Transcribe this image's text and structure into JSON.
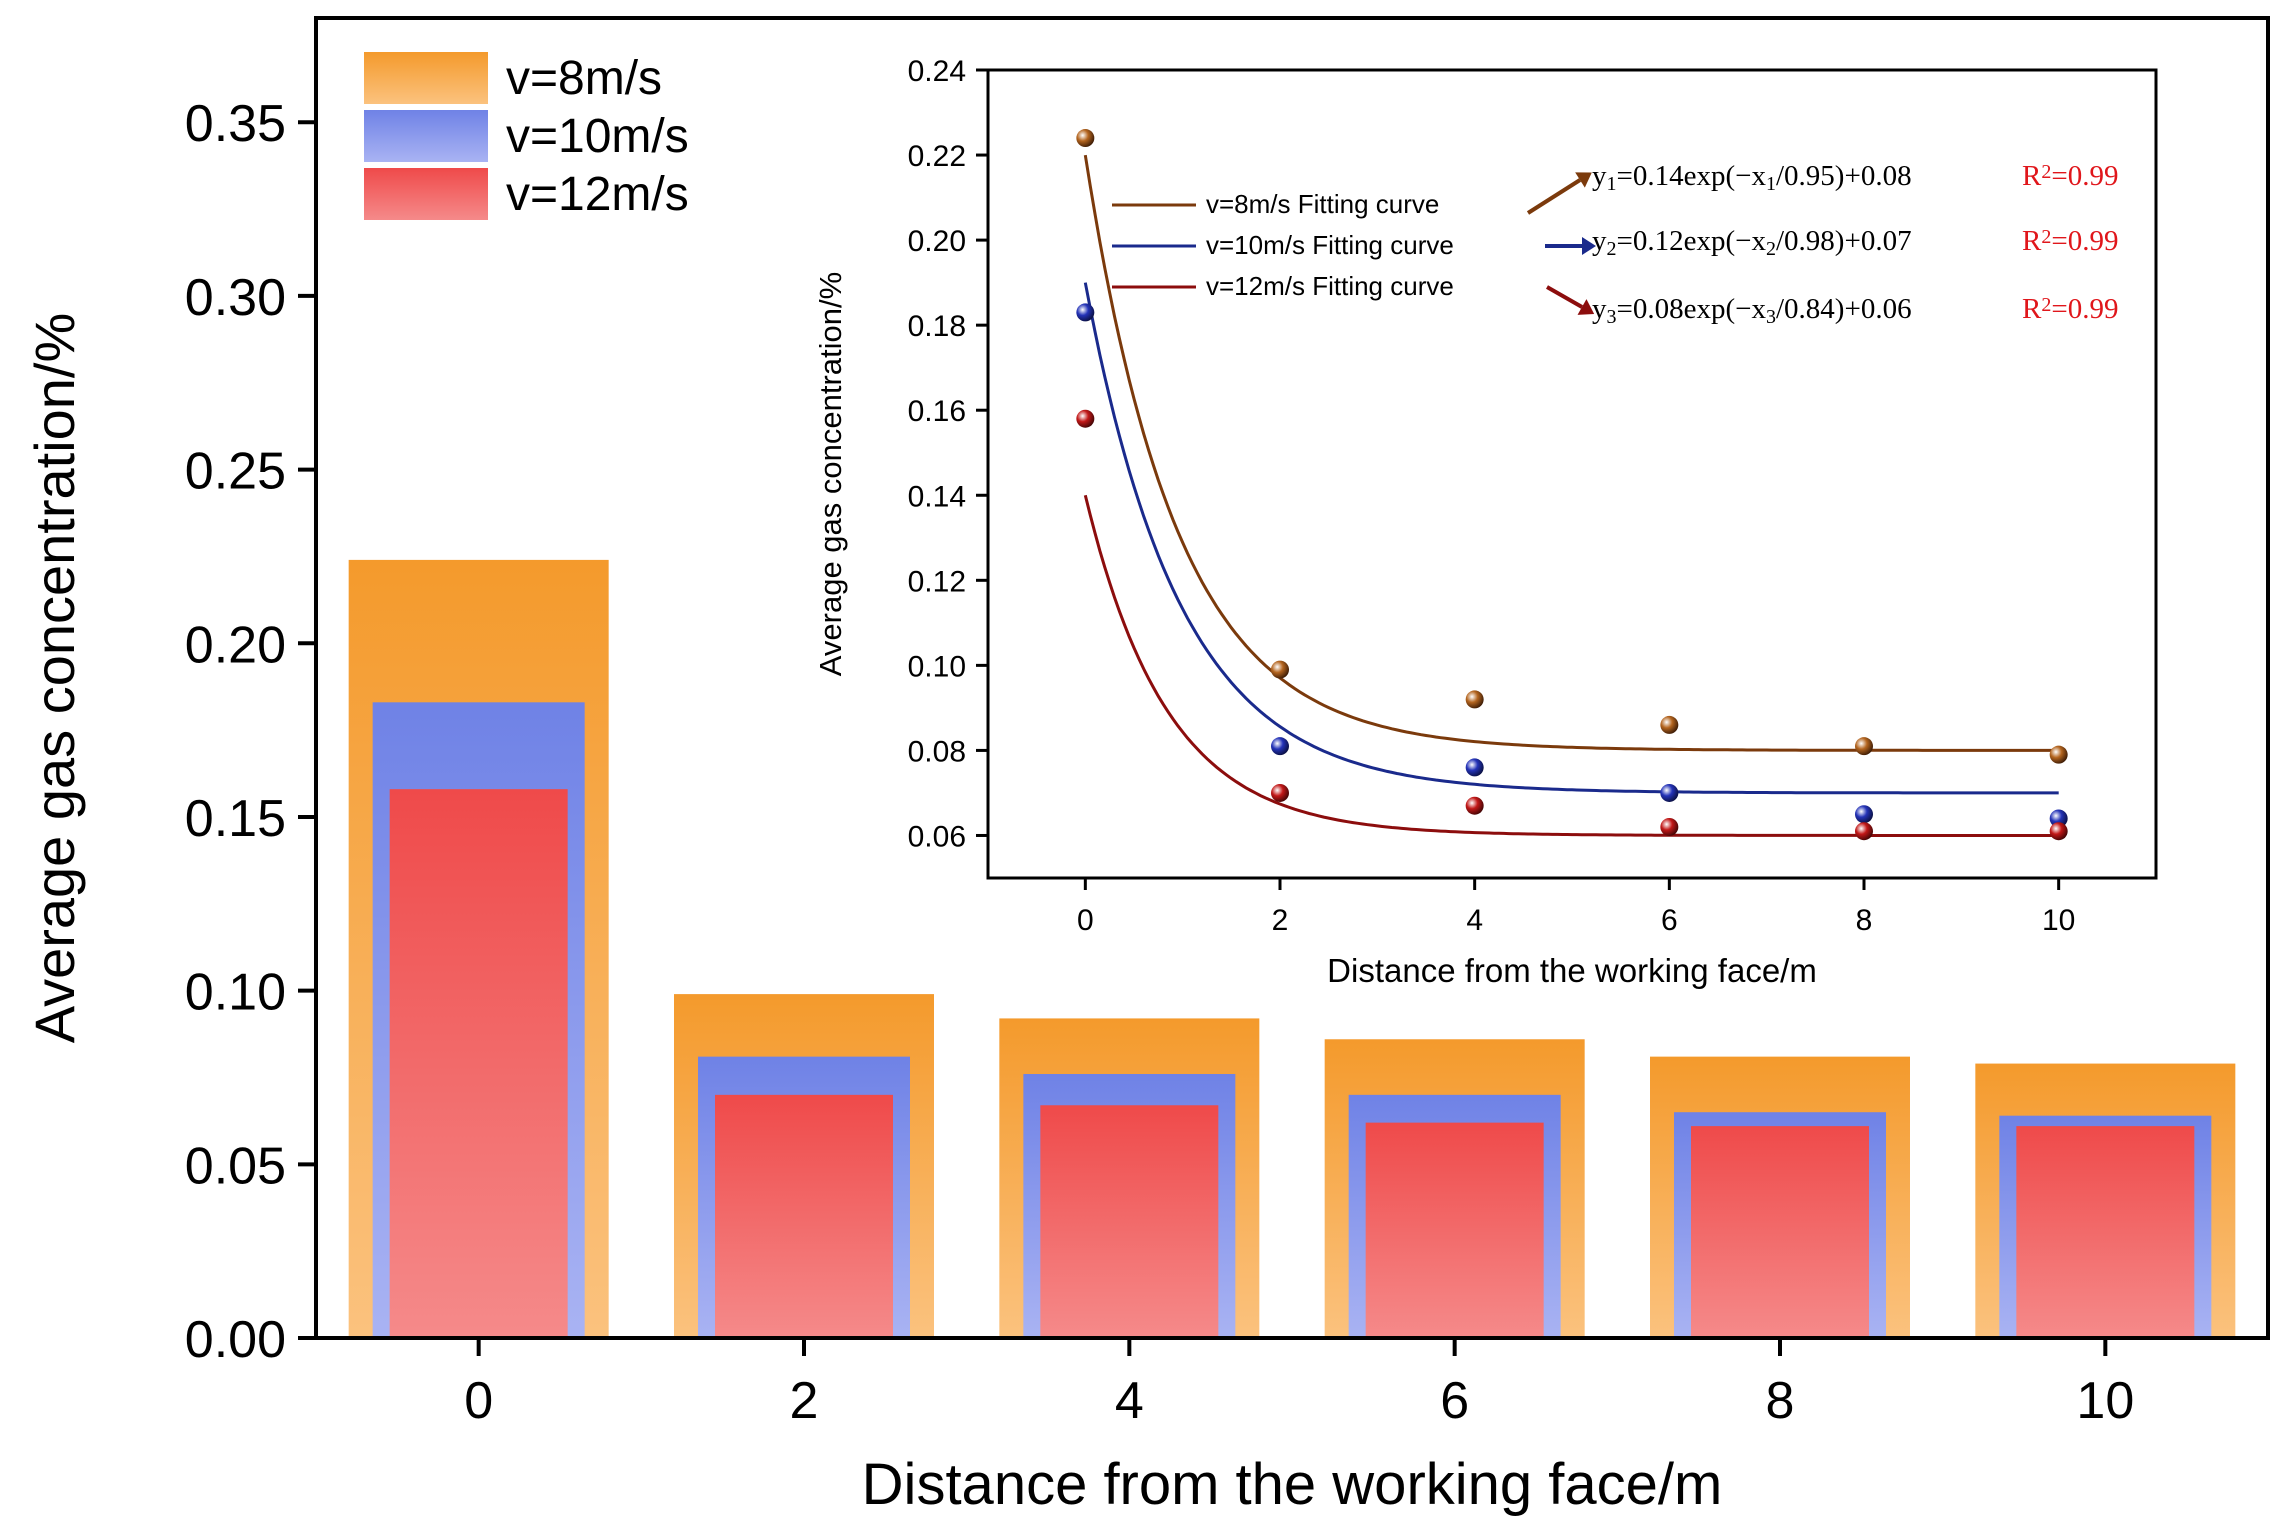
{
  "colors": {
    "orange_top": "#f49a2c",
    "orange_bottom": "#fbc27e",
    "blue_top": "#6f82e6",
    "blue_bottom": "#a9b3f3",
    "red_top": "#ef4a4a",
    "red_bottom": "#f58a8a",
    "fit_8": "#7b3a0c",
    "fit_10": "#1a2a8c",
    "fit_12": "#8c0d0d",
    "pt_8": "#b4651f",
    "pt_10": "#2433b8",
    "pt_12": "#c21818",
    "r2_text": "#e0161b"
  },
  "chart_data": [
    {
      "type": "bar",
      "title": "",
      "xlabel": "Distance from the working face/m",
      "ylabel": "Average gas concentration/%",
      "categories": [
        "0",
        "2",
        "4",
        "6",
        "8",
        "10"
      ],
      "ylim": [
        0,
        0.38
      ],
      "yticks": [
        "0.00",
        "0.05",
        "0.10",
        "0.15",
        "0.20",
        "0.25",
        "0.30",
        "0.35"
      ],
      "legend_position": "top-left",
      "series": [
        {
          "name": "v=8m/s",
          "values": [
            0.224,
            0.099,
            0.092,
            0.086,
            0.081,
            0.079
          ]
        },
        {
          "name": "v=10m/s",
          "values": [
            0.183,
            0.081,
            0.076,
            0.07,
            0.065,
            0.064
          ]
        },
        {
          "name": "v=12m/s",
          "values": [
            0.158,
            0.07,
            0.067,
            0.062,
            0.061,
            0.061
          ]
        }
      ]
    },
    {
      "type": "scatter",
      "title": "",
      "xlabel": "Distance from the working face/m",
      "ylabel": "Average gas concentration/%",
      "x": [
        0,
        2,
        4,
        6,
        8,
        10
      ],
      "xticks": [
        "0",
        "2",
        "4",
        "6",
        "8",
        "10"
      ],
      "xlim": [
        -1,
        11
      ],
      "ylim": [
        0.05,
        0.24
      ],
      "yticks": [
        "0.06",
        "0.08",
        "0.10",
        "0.12",
        "0.14",
        "0.16",
        "0.18",
        "0.20",
        "0.22",
        "0.24"
      ],
      "series": [
        {
          "name": "v=8m/s",
          "values": [
            0.224,
            0.099,
            0.092,
            0.086,
            0.081,
            0.079
          ]
        },
        {
          "name": "v=10m/s",
          "values": [
            0.183,
            0.081,
            0.076,
            0.07,
            0.065,
            0.064
          ]
        },
        {
          "name": "v=12m/s",
          "values": [
            0.158,
            0.07,
            0.067,
            0.062,
            0.061,
            0.061
          ]
        }
      ],
      "fits": [
        {
          "label": "v=8m/s Fitting curve",
          "a": 0.14,
          "t": 0.95,
          "c": 0.08,
          "lhs": "y",
          "sub": "1",
          "eq_mid": "=0.14exp(−x",
          "eq_end": "/0.95)+0.08",
          "r2": "R",
          "r2sup": "2",
          "r2val": "=0.99"
        },
        {
          "label": "v=10m/s Fitting curve",
          "a": 0.12,
          "t": 0.98,
          "c": 0.07,
          "lhs": "y",
          "sub": "2",
          "eq_mid": "=0.12exp(−x",
          "eq_end": "/0.98)+0.07",
          "r2": "R",
          "r2sup": "2",
          "r2val": "=0.99"
        },
        {
          "label": "v=12m/s Fitting curve",
          "a": 0.08,
          "t": 0.84,
          "c": 0.06,
          "lhs": "y",
          "sub": "3",
          "eq_mid": "=0.08exp(−x",
          "eq_end": "/0.84)+0.06",
          "r2": "R",
          "r2sup": "2",
          "r2val": "=0.99"
        }
      ]
    }
  ]
}
